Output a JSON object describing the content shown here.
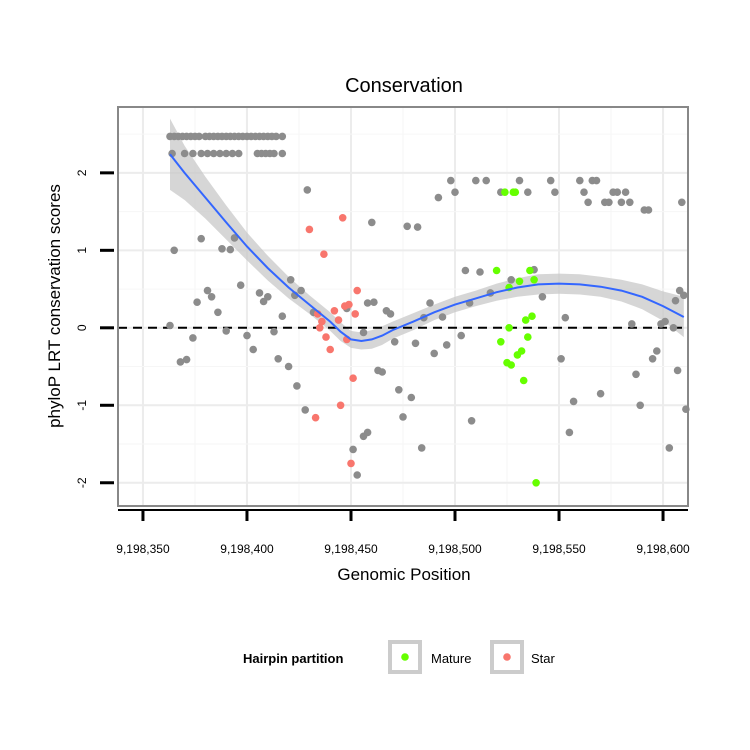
{
  "chart_data": {
    "type": "scatter",
    "title": "Conservation",
    "xlabel": "Genomic Position",
    "ylabel": "phyloP LRT conservation scores",
    "xlim": [
      9198338,
      9198612
    ],
    "ylim": [
      -2.3,
      2.85
    ],
    "x_ticks": [
      9198350,
      9198400,
      9198450,
      9198500,
      9198550,
      9198600
    ],
    "x_tick_labels": [
      "9,198,350",
      "9,198,400",
      "9,198,450",
      "9,198,500",
      "9,198,550",
      "9,198,600"
    ],
    "y_ticks": [
      -2,
      -1,
      0,
      1,
      2
    ],
    "y_tick_labels": [
      "-2",
      "-1",
      "0",
      "1",
      "2"
    ],
    "grid": true,
    "reference_line": {
      "y": 0,
      "style": "dashed"
    },
    "legend": {
      "title": "Hairpin partition",
      "position": "bottom",
      "entries": [
        {
          "label": "Mature",
          "color": "#66ff00"
        },
        {
          "label": "Star",
          "color": "#f8766d"
        }
      ]
    },
    "colors": {
      "other": "#8c8c8c",
      "Mature": "#66ff00",
      "Star": "#f8766d",
      "smooth": "#3366ff",
      "band": "#c8c8c8"
    },
    "smooth": {
      "x": [
        9198363,
        9198370,
        9198380,
        9198390,
        9198400,
        9198410,
        9198420,
        9198430,
        9198440,
        9198445,
        9198450,
        9198455,
        9198460,
        9198465,
        9198470,
        9198480,
        9198490,
        9198500,
        9198510,
        9198520,
        9198530,
        9198540,
        9198550,
        9198560,
        9198570,
        9198580,
        9198590,
        9198600,
        9198610
      ],
      "y": [
        2.24,
        2.0,
        1.68,
        1.36,
        1.05,
        0.77,
        0.52,
        0.3,
        0.08,
        -0.05,
        -0.15,
        -0.17,
        -0.15,
        -0.1,
        -0.03,
        0.08,
        0.2,
        0.3,
        0.38,
        0.46,
        0.52,
        0.56,
        0.57,
        0.56,
        0.53,
        0.48,
        0.4,
        0.28,
        0.14
      ],
      "upper": [
        2.7,
        2.35,
        1.95,
        1.58,
        1.23,
        0.93,
        0.66,
        0.42,
        0.2,
        0.07,
        -0.04,
        -0.06,
        -0.03,
        0.02,
        0.08,
        0.19,
        0.3,
        0.4,
        0.48,
        0.57,
        0.64,
        0.69,
        0.7,
        0.69,
        0.66,
        0.62,
        0.56,
        0.47,
        0.4
      ],
      "lower": [
        1.78,
        1.65,
        1.41,
        1.14,
        0.87,
        0.61,
        0.38,
        0.18,
        -0.04,
        -0.17,
        -0.26,
        -0.28,
        -0.27,
        -0.22,
        -0.14,
        -0.03,
        0.1,
        0.2,
        0.28,
        0.35,
        0.4,
        0.43,
        0.44,
        0.43,
        0.4,
        0.34,
        0.24,
        0.09,
        -0.12
      ]
    },
    "series": [
      {
        "name": "other",
        "points": [
          [
            9198363,
            2.47
          ],
          [
            9198365,
            2.47
          ],
          [
            9198367,
            2.47
          ],
          [
            9198369,
            2.47
          ],
          [
            9198371,
            2.47
          ],
          [
            9198373,
            2.47
          ],
          [
            9198375,
            2.47
          ],
          [
            9198377,
            2.47
          ],
          [
            9198380,
            2.47
          ],
          [
            9198382,
            2.47
          ],
          [
            9198384,
            2.47
          ],
          [
            9198386,
            2.47
          ],
          [
            9198388,
            2.47
          ],
          [
            9198390,
            2.47
          ],
          [
            9198392,
            2.47
          ],
          [
            9198394,
            2.47
          ],
          [
            9198396,
            2.47
          ],
          [
            9198398,
            2.47
          ],
          [
            9198400,
            2.47
          ],
          [
            9198402,
            2.47
          ],
          [
            9198404,
            2.47
          ],
          [
            9198406,
            2.47
          ],
          [
            9198408,
            2.47
          ],
          [
            9198410,
            2.47
          ],
          [
            9198412,
            2.47
          ],
          [
            9198414,
            2.47
          ],
          [
            9198417,
            2.47
          ],
          [
            9198364,
            2.25
          ],
          [
            9198370,
            2.25
          ],
          [
            9198374,
            2.25
          ],
          [
            9198378,
            2.25
          ],
          [
            9198381,
            2.25
          ],
          [
            9198384,
            2.25
          ],
          [
            9198387,
            2.25
          ],
          [
            9198390,
            2.25
          ],
          [
            9198393,
            2.25
          ],
          [
            9198396,
            2.25
          ],
          [
            9198405,
            2.25
          ],
          [
            9198407,
            2.25
          ],
          [
            9198409,
            2.25
          ],
          [
            9198411,
            2.25
          ],
          [
            9198413,
            2.25
          ],
          [
            9198417,
            2.25
          ],
          [
            9198365,
            1.0
          ],
          [
            9198363,
            0.03
          ],
          [
            9198368,
            -0.44
          ],
          [
            9198371,
            -0.41
          ],
          [
            9198374,
            -0.13
          ],
          [
            9198376,
            0.33
          ],
          [
            9198378,
            1.15
          ],
          [
            9198381,
            0.48
          ],
          [
            9198383,
            0.4
          ],
          [
            9198386,
            0.2
          ],
          [
            9198388,
            1.02
          ],
          [
            9198390,
            -0.04
          ],
          [
            9198392,
            1.01
          ],
          [
            9198394,
            1.16
          ],
          [
            9198397,
            0.55
          ],
          [
            9198400,
            -0.1
          ],
          [
            9198403,
            -0.28
          ],
          [
            9198406,
            0.45
          ],
          [
            9198408,
            0.34
          ],
          [
            9198410,
            0.4
          ],
          [
            9198413,
            -0.05
          ],
          [
            9198415,
            -0.4
          ],
          [
            9198417,
            0.15
          ],
          [
            9198420,
            -0.5
          ],
          [
            9198421,
            0.62
          ],
          [
            9198423,
            0.42
          ],
          [
            9198424,
            -0.75
          ],
          [
            9198426,
            0.48
          ],
          [
            9198428,
            -1.06
          ],
          [
            9198429,
            1.78
          ],
          [
            9198432,
            0.2
          ],
          [
            9198448,
            0.25
          ],
          [
            9198451,
            -1.57
          ],
          [
            9198453,
            -1.9
          ],
          [
            9198456,
            -1.4
          ],
          [
            9198458,
            -1.35
          ],
          [
            9198460,
            1.36
          ],
          [
            9198456,
            -0.06
          ],
          [
            9198458,
            0.32
          ],
          [
            9198461,
            0.33
          ],
          [
            9198463,
            -0.55
          ],
          [
            9198465,
            -0.57
          ],
          [
            9198467,
            0.22
          ],
          [
            9198469,
            0.18
          ],
          [
            9198471,
            -0.18
          ],
          [
            9198473,
            -0.8
          ],
          [
            9198475,
            -1.15
          ],
          [
            9198477,
            1.31
          ],
          [
            9198479,
            -0.9
          ],
          [
            9198481,
            -0.2
          ],
          [
            9198482,
            1.3
          ],
          [
            9198484,
            -1.55
          ],
          [
            9198485,
            0.13
          ],
          [
            9198488,
            0.32
          ],
          [
            9198490,
            -0.33
          ],
          [
            9198492,
            1.68
          ],
          [
            9198494,
            0.14
          ],
          [
            9198496,
            -0.22
          ],
          [
            9198498,
            1.9
          ],
          [
            9198500,
            1.75
          ],
          [
            9198503,
            -0.1
          ],
          [
            9198505,
            0.74
          ],
          [
            9198507,
            0.32
          ],
          [
            9198508,
            -1.2
          ],
          [
            9198510,
            1.9
          ],
          [
            9198512,
            0.72
          ],
          [
            9198515,
            1.9
          ],
          [
            9198517,
            0.45
          ],
          [
            9198522,
            1.75
          ],
          [
            9198527,
            0.62
          ],
          [
            9198531,
            1.9
          ],
          [
            9198535,
            1.75
          ],
          [
            9198538,
            0.75
          ],
          [
            9198542,
            0.4
          ],
          [
            9198546,
            1.9
          ],
          [
            9198548,
            1.75
          ],
          [
            9198551,
            -0.4
          ],
          [
            9198553,
            0.13
          ],
          [
            9198555,
            -1.35
          ],
          [
            9198557,
            -0.95
          ],
          [
            9198560,
            1.9
          ],
          [
            9198562,
            1.75
          ],
          [
            9198564,
            1.62
          ],
          [
            9198566,
            1.9
          ],
          [
            9198568,
            1.9
          ],
          [
            9198570,
            -0.85
          ],
          [
            9198572,
            1.62
          ],
          [
            9198574,
            1.62
          ],
          [
            9198576,
            1.75
          ],
          [
            9198578,
            1.75
          ],
          [
            9198580,
            1.62
          ],
          [
            9198582,
            1.75
          ],
          [
            9198584,
            1.62
          ],
          [
            9198585,
            0.05
          ],
          [
            9198587,
            -0.6
          ],
          [
            9198589,
            -1.0
          ],
          [
            9198591,
            1.52
          ],
          [
            9198593,
            1.52
          ],
          [
            9198595,
            -0.4
          ],
          [
            9198597,
            -0.3
          ],
          [
            9198599,
            0.05
          ],
          [
            9198601,
            0.08
          ],
          [
            9198603,
            -1.55
          ],
          [
            9198605,
            0.0
          ],
          [
            9198607,
            -0.55
          ],
          [
            9198608,
            0.48
          ],
          [
            9198609,
            1.62
          ],
          [
            9198610,
            0.42
          ],
          [
            9198611,
            -1.05
          ],
          [
            9198606,
            0.35
          ]
        ]
      },
      {
        "name": "Mature",
        "points": [
          [
            9198520,
            0.74
          ],
          [
            9198522,
            -0.18
          ],
          [
            9198524,
            1.75
          ],
          [
            9198525,
            -0.45
          ],
          [
            9198526,
            0.0
          ],
          [
            9198527,
            -0.48
          ],
          [
            9198528,
            1.75
          ],
          [
            9198529,
            1.75
          ],
          [
            9198530,
            -0.35
          ],
          [
            9198531,
            0.6
          ],
          [
            9198532,
            -0.3
          ],
          [
            9198533,
            -0.68
          ],
          [
            9198534,
            0.1
          ],
          [
            9198535,
            -0.12
          ],
          [
            9198536,
            0.74
          ],
          [
            9198537,
            0.15
          ],
          [
            9198538,
            0.62
          ],
          [
            9198539,
            -2.0
          ],
          [
            9198526,
            0.52
          ]
        ]
      },
      {
        "name": "Star",
        "points": [
          [
            9198430,
            1.27
          ],
          [
            9198433,
            -1.16
          ],
          [
            9198434,
            0.18
          ],
          [
            9198435,
            0.0
          ],
          [
            9198436,
            0.08
          ],
          [
            9198437,
            0.95
          ],
          [
            9198438,
            -0.12
          ],
          [
            9198440,
            -0.28
          ],
          [
            9198442,
            0.22
          ],
          [
            9198444,
            0.1
          ],
          [
            9198445,
            -1.0
          ],
          [
            9198446,
            1.42
          ],
          [
            9198447,
            0.28
          ],
          [
            9198448,
            -0.15
          ],
          [
            9198449,
            0.3
          ],
          [
            9198450,
            -1.75
          ],
          [
            9198451,
            -0.65
          ],
          [
            9198452,
            0.18
          ],
          [
            9198453,
            0.48
          ]
        ]
      }
    ]
  }
}
